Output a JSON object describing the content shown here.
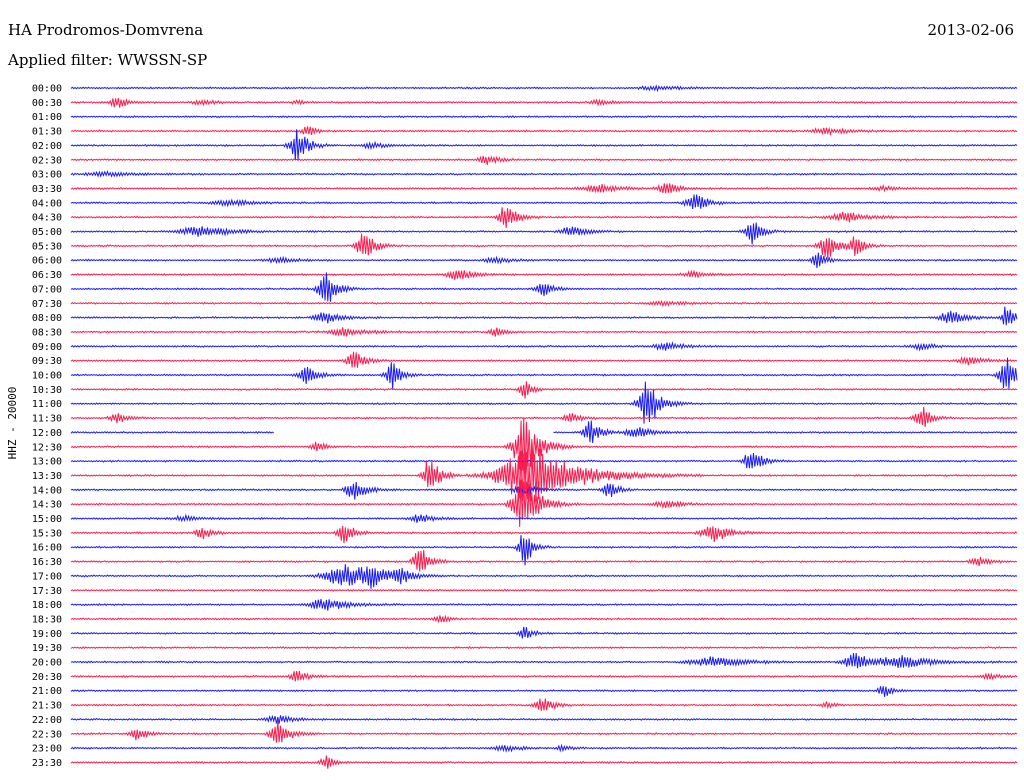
{
  "header": {
    "station": "HA Prodromos-Domvrena",
    "filter": "Applied filter: WWSSN-SP",
    "date": "2013-02-06"
  },
  "chart_data": {
    "type": "line",
    "title": "HA Prodromos-Domvrena",
    "ylabel": "HHZ - 20000",
    "colors": [
      "#1a1aff",
      "#ff1a4d"
    ],
    "rows": [
      {
        "label": "00:00",
        "color": "blue",
        "events": [
          {
            "x": 0.62,
            "a": 2,
            "w": 0.03
          }
        ],
        "gap": null
      },
      {
        "label": "00:30",
        "color": "red",
        "events": [
          {
            "x": 0.05,
            "a": 7,
            "w": 0.012
          },
          {
            "x": 0.14,
            "a": 2,
            "w": 0.02
          },
          {
            "x": 0.24,
            "a": 2,
            "w": 0.01
          },
          {
            "x": 0.56,
            "a": 2,
            "w": 0.02
          }
        ],
        "gap": null
      },
      {
        "label": "01:00",
        "color": "blue",
        "events": [],
        "gap": null
      },
      {
        "label": "01:30",
        "color": "red",
        "events": [
          {
            "x": 0.25,
            "a": 6,
            "w": 0.01
          },
          {
            "x": 0.8,
            "a": 3,
            "w": 0.03
          }
        ],
        "gap": null
      },
      {
        "label": "02:00",
        "color": "blue",
        "events": [
          {
            "x": 0.24,
            "a": 17,
            "w": 0.014
          },
          {
            "x": 0.32,
            "a": 3,
            "w": 0.02
          }
        ],
        "gap": null
      },
      {
        "label": "02:30",
        "color": "red",
        "events": [
          {
            "x": 0.44,
            "a": 5,
            "w": 0.014
          }
        ],
        "gap": null
      },
      {
        "label": "03:00",
        "color": "blue",
        "events": [
          {
            "x": 0.04,
            "a": 2,
            "w": 0.04
          }
        ],
        "gap": null
      },
      {
        "label": "03:30",
        "color": "red",
        "events": [
          {
            "x": 0.56,
            "a": 4,
            "w": 0.03
          },
          {
            "x": 0.63,
            "a": 6,
            "w": 0.015
          },
          {
            "x": 0.86,
            "a": 2,
            "w": 0.02
          }
        ],
        "gap": null
      },
      {
        "label": "04:00",
        "color": "blue",
        "events": [
          {
            "x": 0.17,
            "a": 3,
            "w": 0.03
          },
          {
            "x": 0.66,
            "a": 11,
            "w": 0.015
          }
        ],
        "gap": null
      },
      {
        "label": "04:30",
        "color": "red",
        "events": [
          {
            "x": 0.46,
            "a": 13,
            "w": 0.014
          },
          {
            "x": 0.82,
            "a": 5,
            "w": 0.03
          }
        ],
        "gap": null
      },
      {
        "label": "05:00",
        "color": "blue",
        "events": [
          {
            "x": 0.14,
            "a": 5,
            "w": 0.04
          },
          {
            "x": 0.53,
            "a": 5,
            "w": 0.02
          },
          {
            "x": 0.72,
            "a": 14,
            "w": 0.012
          }
        ],
        "gap": null
      },
      {
        "label": "05:30",
        "color": "red",
        "events": [
          {
            "x": 0.31,
            "a": 17,
            "w": 0.013
          },
          {
            "x": 0.8,
            "a": 14,
            "w": 0.015
          },
          {
            "x": 0.83,
            "a": 10,
            "w": 0.01
          }
        ],
        "gap": null
      },
      {
        "label": "06:00",
        "color": "blue",
        "events": [
          {
            "x": 0.22,
            "a": 3,
            "w": 0.02
          },
          {
            "x": 0.45,
            "a": 3,
            "w": 0.02
          },
          {
            "x": 0.79,
            "a": 9,
            "w": 0.01
          }
        ],
        "gap": null
      },
      {
        "label": "06:30",
        "color": "red",
        "events": [
          {
            "x": 0.41,
            "a": 6,
            "w": 0.02
          },
          {
            "x": 0.66,
            "a": 3,
            "w": 0.02
          }
        ],
        "gap": null
      },
      {
        "label": "07:00",
        "color": "blue",
        "events": [
          {
            "x": 0.27,
            "a": 20,
            "w": 0.014
          },
          {
            "x": 0.5,
            "a": 7,
            "w": 0.014
          }
        ],
        "gap": null
      },
      {
        "label": "07:30",
        "color": "red",
        "events": [
          {
            "x": 0.63,
            "a": 2,
            "w": 0.03
          }
        ],
        "gap": null
      },
      {
        "label": "08:00",
        "color": "blue",
        "events": [
          {
            "x": 0.27,
            "a": 6,
            "w": 0.02
          },
          {
            "x": 0.93,
            "a": 7,
            "w": 0.02
          },
          {
            "x": 0.99,
            "a": 16,
            "w": 0.008
          }
        ],
        "gap": null
      },
      {
        "label": "08:30",
        "color": "red",
        "events": [
          {
            "x": 0.29,
            "a": 4,
            "w": 0.03
          },
          {
            "x": 0.45,
            "a": 5,
            "w": 0.01
          }
        ],
        "gap": null
      },
      {
        "label": "09:00",
        "color": "blue",
        "events": [
          {
            "x": 0.63,
            "a": 5,
            "w": 0.02
          },
          {
            "x": 0.9,
            "a": 3,
            "w": 0.02
          }
        ],
        "gap": null
      },
      {
        "label": "09:30",
        "color": "red",
        "events": [
          {
            "x": 0.3,
            "a": 9,
            "w": 0.014
          },
          {
            "x": 0.95,
            "a": 4,
            "w": 0.02
          }
        ],
        "gap": null
      },
      {
        "label": "10:00",
        "color": "blue",
        "events": [
          {
            "x": 0.25,
            "a": 9,
            "w": 0.014
          },
          {
            "x": 0.34,
            "a": 13,
            "w": 0.012
          },
          {
            "x": 0.99,
            "a": 18,
            "w": 0.014
          }
        ],
        "gap": null
      },
      {
        "label": "10:30",
        "color": "red",
        "events": [
          {
            "x": 0.48,
            "a": 10,
            "w": 0.01
          }
        ],
        "gap": null
      },
      {
        "label": "11:00",
        "color": "blue",
        "events": [
          {
            "x": 0.61,
            "a": 24,
            "w": 0.016
          }
        ],
        "gap": null
      },
      {
        "label": "11:30",
        "color": "red",
        "events": [
          {
            "x": 0.05,
            "a": 5,
            "w": 0.014
          },
          {
            "x": 0.53,
            "a": 5,
            "w": 0.014
          },
          {
            "x": 0.9,
            "a": 13,
            "w": 0.012
          }
        ],
        "gap": null
      },
      {
        "label": "12:00",
        "color": "blue",
        "events": [
          {
            "x": 0.55,
            "a": 12,
            "w": 0.013
          },
          {
            "x": 0.6,
            "a": 6,
            "w": 0.02
          }
        ],
        "gap": [
          0.215,
          0.51
        ]
      },
      {
        "label": "12:30",
        "color": "red",
        "events": [
          {
            "x": 0.26,
            "a": 6,
            "w": 0.01
          },
          {
            "x": 0.48,
            "a": 30,
            "w": 0.02
          }
        ],
        "gap": null
      },
      {
        "label": "13:00",
        "color": "blue",
        "events": [
          {
            "x": 0.72,
            "a": 14,
            "w": 0.013
          }
        ],
        "gap": null
      },
      {
        "label": "13:30",
        "color": "red",
        "events": [
          {
            "x": 0.38,
            "a": 20,
            "w": 0.013
          },
          {
            "x": 0.49,
            "a": 30,
            "w": 0.06
          }
        ],
        "gap": null
      },
      {
        "label": "14:00",
        "color": "blue",
        "events": [
          {
            "x": 0.3,
            "a": 11,
            "w": 0.015
          },
          {
            "x": 0.48,
            "a": 4,
            "w": 0.02
          },
          {
            "x": 0.57,
            "a": 8,
            "w": 0.012
          }
        ],
        "gap": null
      },
      {
        "label": "14:30",
        "color": "red",
        "events": [
          {
            "x": 0.48,
            "a": 30,
            "w": 0.02
          },
          {
            "x": 0.63,
            "a": 4,
            "w": 0.02
          }
        ],
        "gap": null
      },
      {
        "label": "15:00",
        "color": "blue",
        "events": [
          {
            "x": 0.12,
            "a": 3,
            "w": 0.02
          },
          {
            "x": 0.37,
            "a": 4,
            "w": 0.02
          }
        ],
        "gap": null
      },
      {
        "label": "15:30",
        "color": "red",
        "events": [
          {
            "x": 0.14,
            "a": 6,
            "w": 0.014
          },
          {
            "x": 0.29,
            "a": 12,
            "w": 0.012
          },
          {
            "x": 0.68,
            "a": 10,
            "w": 0.02
          }
        ],
        "gap": null
      },
      {
        "label": "16:00",
        "color": "blue",
        "events": [
          {
            "x": 0.48,
            "a": 22,
            "w": 0.01
          }
        ],
        "gap": null
      },
      {
        "label": "16:30",
        "color": "red",
        "events": [
          {
            "x": 0.37,
            "a": 15,
            "w": 0.013
          },
          {
            "x": 0.96,
            "a": 5,
            "w": 0.014
          }
        ],
        "gap": null
      },
      {
        "label": "17:00",
        "color": "blue",
        "events": [
          {
            "x": 0.29,
            "a": 12,
            "w": 0.035
          },
          {
            "x": 0.32,
            "a": 9,
            "w": 0.02
          },
          {
            "x": 0.35,
            "a": 6,
            "w": 0.014
          }
        ],
        "gap": null
      },
      {
        "label": "17:30",
        "color": "red",
        "events": [],
        "gap": null
      },
      {
        "label": "18:00",
        "color": "blue",
        "events": [
          {
            "x": 0.27,
            "a": 6,
            "w": 0.03
          }
        ],
        "gap": null
      },
      {
        "label": "18:30",
        "color": "red",
        "events": [
          {
            "x": 0.39,
            "a": 5,
            "w": 0.01
          }
        ],
        "gap": null
      },
      {
        "label": "19:00",
        "color": "blue",
        "events": [
          {
            "x": 0.48,
            "a": 8,
            "w": 0.01
          }
        ],
        "gap": null
      },
      {
        "label": "19:30",
        "color": "red",
        "events": [],
        "gap": null
      },
      {
        "label": "20:00",
        "color": "blue",
        "events": [
          {
            "x": 0.68,
            "a": 5,
            "w": 0.04
          },
          {
            "x": 0.83,
            "a": 9,
            "w": 0.02
          },
          {
            "x": 0.88,
            "a": 6,
            "w": 0.04
          }
        ],
        "gap": null
      },
      {
        "label": "20:30",
        "color": "red",
        "events": [
          {
            "x": 0.24,
            "a": 6,
            "w": 0.014
          },
          {
            "x": 0.97,
            "a": 3,
            "w": 0.014
          }
        ],
        "gap": null
      },
      {
        "label": "21:00",
        "color": "blue",
        "events": [
          {
            "x": 0.86,
            "a": 7,
            "w": 0.01
          }
        ],
        "gap": null
      },
      {
        "label": "21:30",
        "color": "red",
        "events": [
          {
            "x": 0.5,
            "a": 7,
            "w": 0.015
          },
          {
            "x": 0.8,
            "a": 3,
            "w": 0.01
          }
        ],
        "gap": null
      },
      {
        "label": "22:00",
        "color": "blue",
        "events": [
          {
            "x": 0.22,
            "a": 4,
            "w": 0.02
          }
        ],
        "gap": null
      },
      {
        "label": "22:30",
        "color": "red",
        "events": [
          {
            "x": 0.07,
            "a": 7,
            "w": 0.012
          },
          {
            "x": 0.22,
            "a": 15,
            "w": 0.014
          }
        ],
        "gap": null
      },
      {
        "label": "23:00",
        "color": "blue",
        "events": [
          {
            "x": 0.46,
            "a": 3,
            "w": 0.02
          },
          {
            "x": 0.52,
            "a": 3,
            "w": 0.01
          }
        ],
        "gap": null
      },
      {
        "label": "23:30",
        "color": "red",
        "events": [
          {
            "x": 0.27,
            "a": 7,
            "w": 0.01
          }
        ],
        "gap": null
      }
    ]
  }
}
